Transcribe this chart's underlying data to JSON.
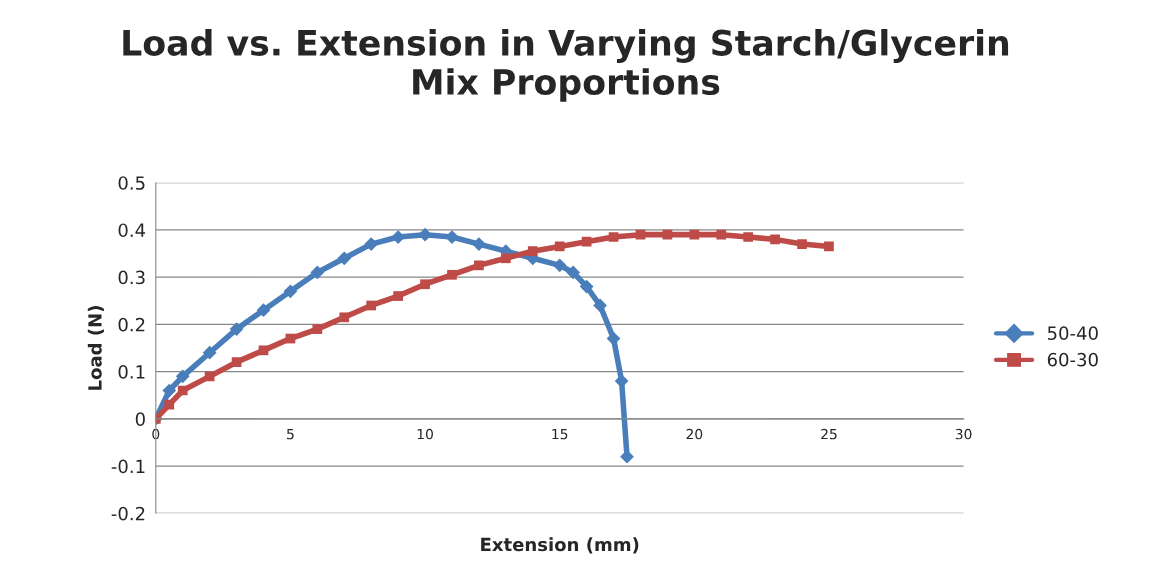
{
  "chart_data": {
    "type": "line",
    "title": "Load vs. Extension in Varying Starch/Glycerin\nMix Proportions",
    "xlabel": "Extension (mm)",
    "ylabel": "Load (N)",
    "xlim": [
      0,
      30
    ],
    "xticks": [
      0,
      5,
      10,
      15,
      20,
      25,
      30
    ],
    "ylim": [
      -0.2,
      0.5
    ],
    "yticks": [
      -0.2,
      -0.1,
      0,
      0.1,
      0.2,
      0.3,
      0.4,
      0.5
    ],
    "grid": "y",
    "legend": "right",
    "series": [
      {
        "name": "50-40",
        "color": "#4a7ebb",
        "marker": "diamond",
        "x": [
          0,
          0.5,
          1,
          2,
          3,
          4,
          5,
          6,
          7,
          8,
          9,
          10,
          11,
          12,
          13,
          14,
          15,
          15.5,
          16,
          16.5,
          17,
          17.3,
          17.5
        ],
        "values": [
          0,
          0.06,
          0.09,
          0.14,
          0.19,
          0.23,
          0.27,
          0.31,
          0.34,
          0.37,
          0.385,
          0.39,
          0.385,
          0.37,
          0.355,
          0.34,
          0.325,
          0.31,
          0.28,
          0.24,
          0.17,
          0.08,
          -0.08
        ]
      },
      {
        "name": "60-30",
        "color": "#be4b48",
        "marker": "square",
        "x": [
          0,
          0.5,
          1,
          2,
          3,
          4,
          5,
          6,
          7,
          8,
          9,
          10,
          11,
          12,
          13,
          14,
          15,
          16,
          17,
          18,
          19,
          20,
          21,
          22,
          23,
          24,
          25
        ],
        "values": [
          0,
          0.03,
          0.06,
          0.09,
          0.12,
          0.145,
          0.17,
          0.19,
          0.215,
          0.24,
          0.26,
          0.285,
          0.305,
          0.325,
          0.34,
          0.355,
          0.365,
          0.375,
          0.385,
          0.39,
          0.39,
          0.39,
          0.39,
          0.385,
          0.38,
          0.37,
          0.365
        ]
      }
    ]
  }
}
